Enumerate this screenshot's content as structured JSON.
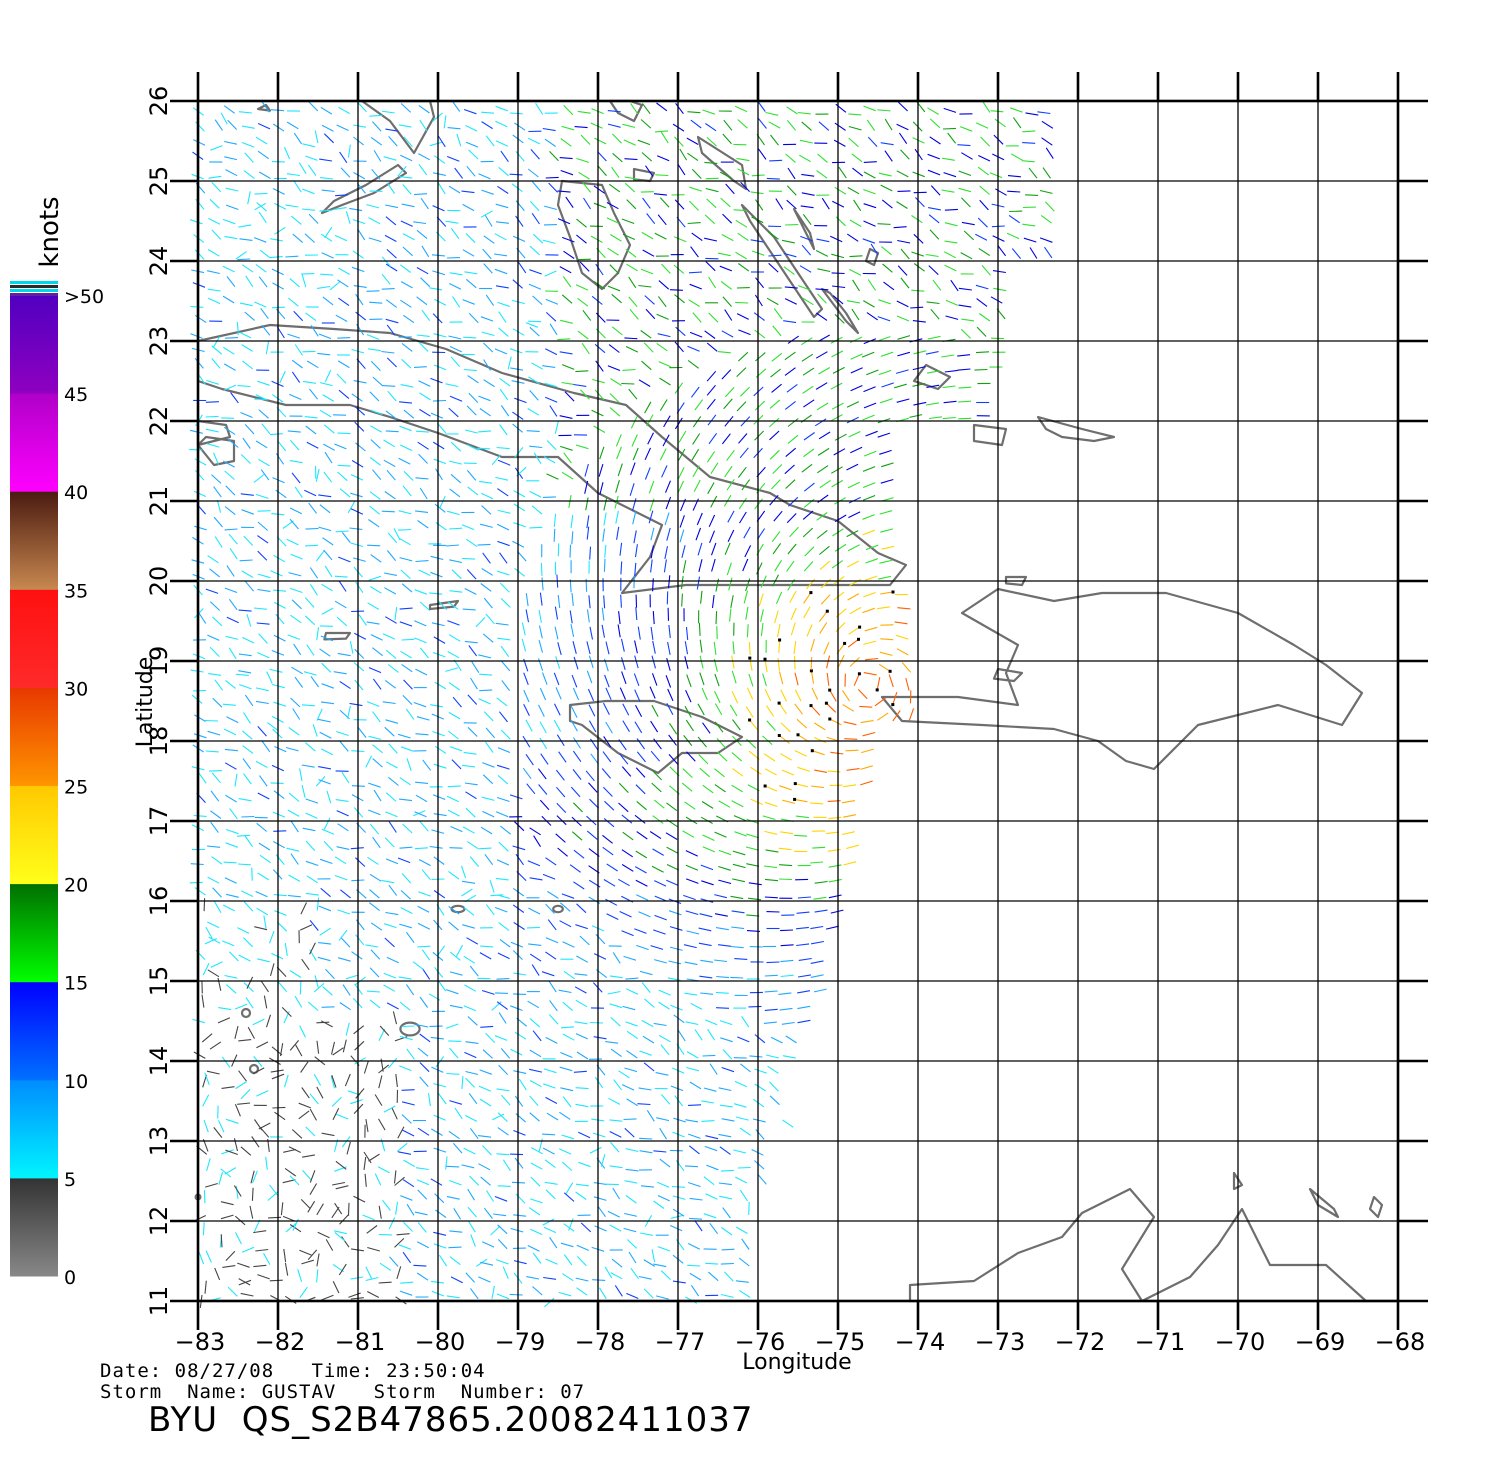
{
  "colorbar": {
    "unit_label": "knots",
    "ticks": [
      "0",
      "5",
      "10",
      "15",
      "20",
      "25",
      "30",
      "35",
      "40",
      "45",
      ">50"
    ],
    "bands": [
      {
        "from": 0,
        "to": 5,
        "top": "#333333",
        "bottom": "#888888"
      },
      {
        "from": 5,
        "to": 10,
        "top": "#008cff",
        "bottom": "#00f5ff"
      },
      {
        "from": 10,
        "to": 15,
        "top": "#0000ff",
        "bottom": "#0070ff"
      },
      {
        "from": 15,
        "to": 20,
        "top": "#006f00",
        "bottom": "#00ff00"
      },
      {
        "from": 20,
        "to": 25,
        "top": "#ffc800",
        "bottom": "#ffff1a"
      },
      {
        "from": 25,
        "to": 30,
        "top": "#e83800",
        "bottom": "#ff9500"
      },
      {
        "from": 30,
        "to": 35,
        "top": "#ff1010",
        "bottom": "#ff2a2a"
      },
      {
        "from": 35,
        "to": 40,
        "top": "#4a1a10",
        "bottom": "#c88850"
      },
      {
        "from": 40,
        "to": 45,
        "top": "#b000c8",
        "bottom": "#ff00ff"
      },
      {
        "from": 45,
        "to": 50,
        "top": "#5000c0",
        "bottom": "#9000c0"
      }
    ]
  },
  "map": {
    "x_axis_label": "Longitude",
    "y_axis_label": "Latitude",
    "lon_range": [
      -83,
      -68
    ],
    "lat_range": [
      11,
      26
    ],
    "lon_ticks": [
      "-83",
      "-82",
      "-81",
      "-80",
      "-79",
      "-78",
      "-77",
      "-76",
      "-75",
      "-74",
      "-73",
      "-72",
      "-71",
      "-70",
      "-69",
      "-68"
    ],
    "lat_ticks": [
      "11",
      "12",
      "13",
      "14",
      "15",
      "16",
      "17",
      "18",
      "19",
      "20",
      "21",
      "22",
      "23",
      "24",
      "25",
      "26"
    ],
    "grid": true,
    "colors": {
      "grid": "#000000",
      "coast": "#6e6e6e",
      "rain_flag": "#000000"
    }
  },
  "info": {
    "line1": "Date: 08/27/08   Time: 23:50:04",
    "line2": "Storm  Name: GUSTAV   Storm  Number: 07",
    "product": "BYU  QS_S2B47865.20082411037"
  }
}
